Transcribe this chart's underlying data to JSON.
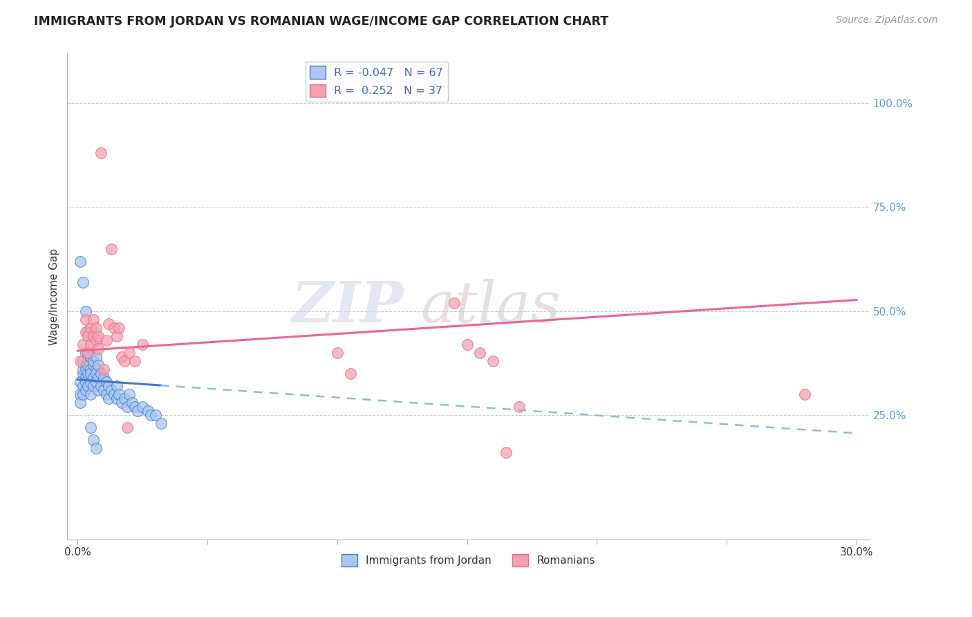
{
  "title": "IMMIGRANTS FROM JORDAN VS ROMANIAN WAGE/INCOME GAP CORRELATION CHART",
  "source": "Source: ZipAtlas.com",
  "ylabel": "Wage/Income Gap",
  "watermark_zip": "ZIP",
  "watermark_atlas": "atlas",
  "legend_jordan": "Immigrants from Jordan",
  "legend_romanian": "Romanians",
  "r_jordan": -0.047,
  "n_jordan": 67,
  "r_romanian": 0.252,
  "n_romanian": 37,
  "ytick_right_vals": [
    0.25,
    0.5,
    0.75,
    1.0
  ],
  "ytick_right_labels": [
    "25.0%",
    "50.0%",
    "75.0%",
    "100.0%"
  ],
  "color_jordan": "#a8c8f0",
  "color_romanian": "#f4a0b0",
  "color_jordan_line": "#4477cc",
  "color_romanian_line": "#ee6688",
  "color_jordan_dashed": "#88bbee",
  "background_color": "#ffffff",
  "jordan_x": [
    0.001,
    0.001,
    0.001,
    0.002,
    0.002,
    0.002,
    0.002,
    0.002,
    0.003,
    0.003,
    0.003,
    0.003,
    0.003,
    0.003,
    0.004,
    0.004,
    0.004,
    0.004,
    0.004,
    0.005,
    0.005,
    0.005,
    0.005,
    0.005,
    0.006,
    0.006,
    0.006,
    0.006,
    0.007,
    0.007,
    0.007,
    0.007,
    0.008,
    0.008,
    0.008,
    0.009,
    0.009,
    0.01,
    0.01,
    0.011,
    0.011,
    0.012,
    0.012,
    0.013,
    0.014,
    0.015,
    0.015,
    0.016,
    0.017,
    0.018,
    0.019,
    0.02,
    0.021,
    0.022,
    0.023,
    0.025,
    0.027,
    0.028,
    0.03,
    0.032,
    0.001,
    0.002,
    0.003,
    0.004,
    0.005,
    0.006,
    0.007
  ],
  "jordan_y": [
    0.3,
    0.33,
    0.28,
    0.35,
    0.38,
    0.32,
    0.36,
    0.3,
    0.37,
    0.4,
    0.34,
    0.31,
    0.36,
    0.33,
    0.38,
    0.35,
    0.4,
    0.37,
    0.32,
    0.36,
    0.39,
    0.33,
    0.35,
    0.3,
    0.37,
    0.34,
    0.38,
    0.32,
    0.36,
    0.39,
    0.33,
    0.35,
    0.37,
    0.34,
    0.31,
    0.35,
    0.32,
    0.34,
    0.31,
    0.33,
    0.3,
    0.32,
    0.29,
    0.31,
    0.3,
    0.32,
    0.29,
    0.3,
    0.28,
    0.29,
    0.27,
    0.3,
    0.28,
    0.27,
    0.26,
    0.27,
    0.26,
    0.25,
    0.25,
    0.23,
    0.62,
    0.57,
    0.5,
    0.45,
    0.22,
    0.19,
    0.17
  ],
  "romanian_x": [
    0.001,
    0.002,
    0.003,
    0.003,
    0.004,
    0.004,
    0.005,
    0.005,
    0.006,
    0.006,
    0.007,
    0.007,
    0.008,
    0.008,
    0.009,
    0.01,
    0.011,
    0.012,
    0.013,
    0.014,
    0.015,
    0.016,
    0.017,
    0.018,
    0.019,
    0.02,
    0.022,
    0.025,
    0.1,
    0.105,
    0.145,
    0.15,
    0.155,
    0.16,
    0.165,
    0.17,
    0.28
  ],
  "romanian_y": [
    0.38,
    0.42,
    0.45,
    0.48,
    0.44,
    0.4,
    0.46,
    0.42,
    0.44,
    0.48,
    0.43,
    0.46,
    0.41,
    0.44,
    0.88,
    0.36,
    0.43,
    0.47,
    0.65,
    0.46,
    0.44,
    0.46,
    0.39,
    0.38,
    0.22,
    0.4,
    0.38,
    0.42,
    0.4,
    0.35,
    0.52,
    0.42,
    0.4,
    0.38,
    0.16,
    0.27,
    0.3
  ]
}
